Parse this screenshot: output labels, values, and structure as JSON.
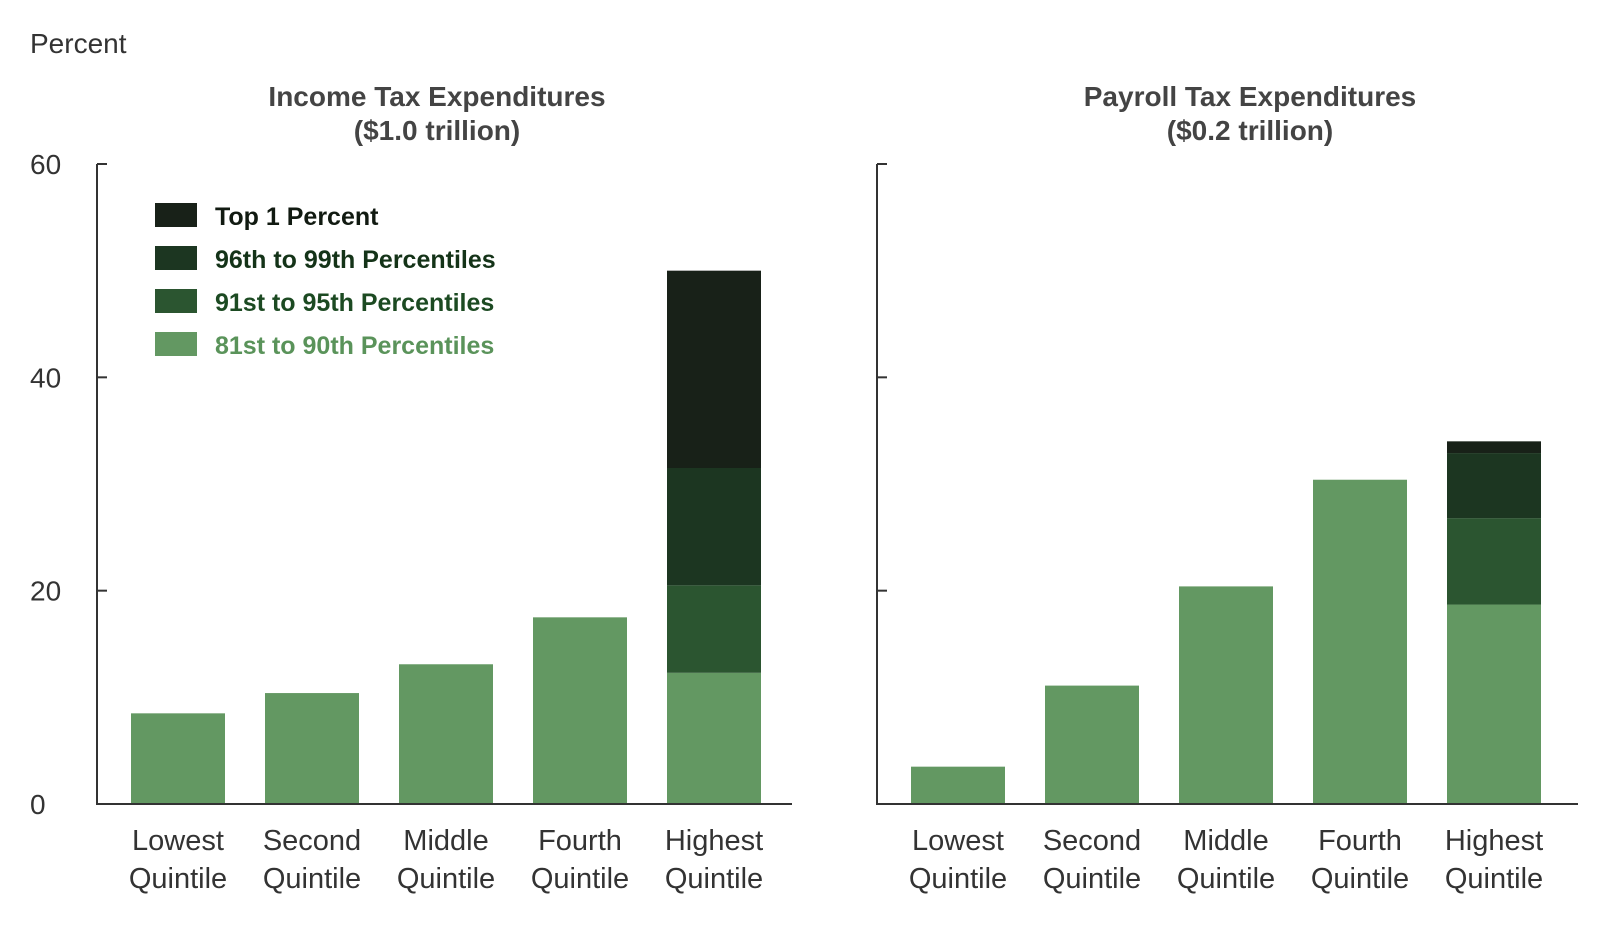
{
  "chart_data": {
    "type": "bar",
    "stacked": true,
    "ylabel": "Percent",
    "ylim": [
      0,
      60
    ],
    "yticks": [
      0,
      20,
      40,
      60
    ],
    "grid": false,
    "legend_position": "top-left",
    "categories": [
      [
        "Lowest",
        "Quintile"
      ],
      [
        "Second",
        "Quintile"
      ],
      [
        "Middle",
        "Quintile"
      ],
      [
        "Fourth",
        "Quintile"
      ],
      [
        "Highest",
        "Quintile"
      ]
    ],
    "legend": [
      {
        "name": "Top 1  Percent",
        "color": "#182118",
        "text_color": "#111a11"
      },
      {
        "name": "96th to 99th Percentiles",
        "color": "#1c3621",
        "text_color": "#143318"
      },
      {
        "name": "91st to 95th Percentiles",
        "color": "#2b5530",
        "text_color": "#1c4a22"
      },
      {
        "name": "81st to 90th Percentiles",
        "color": "#639862",
        "text_color": "#5a935a"
      }
    ],
    "panels": [
      {
        "title": "Income Tax Expenditures",
        "subtitle": "($1.0 trillion)",
        "bars": [
          {
            "total": 8.5
          },
          {
            "total": 10.4
          },
          {
            "total": 13.1
          },
          {
            "total": 17.5
          },
          {
            "total": 50.0,
            "segments": [
              {
                "name": "81st to 90th Percentiles",
                "value": 12.3
              },
              {
                "name": "91st to 95th Percentiles",
                "value": 8.2
              },
              {
                "name": "96th to 99th Percentiles",
                "value": 11.0
              },
              {
                "name": "Top 1  Percent",
                "value": 18.5
              }
            ]
          }
        ]
      },
      {
        "title": "Payroll Tax Expenditures",
        "subtitle": "($0.2 trillion)",
        "bars": [
          {
            "total": 3.5
          },
          {
            "total": 11.1
          },
          {
            "total": 20.4
          },
          {
            "total": 30.4
          },
          {
            "total": 34.0,
            "segments": [
              {
                "name": "81st to 90th Percentiles",
                "value": 18.7
              },
              {
                "name": "91st to 95th Percentiles",
                "value": 8.1
              },
              {
                "name": "96th to 99th Percentiles",
                "value": 6.1
              },
              {
                "name": "Top 1  Percent",
                "value": 1.1
              }
            ]
          }
        ]
      }
    ],
    "bar_color": "#639862"
  }
}
